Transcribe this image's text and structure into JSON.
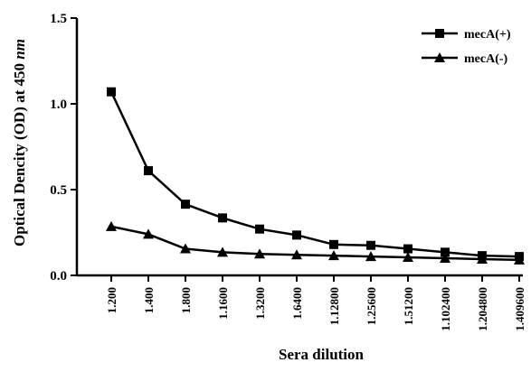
{
  "chart_data": {
    "type": "line",
    "title": "",
    "xlabel": "Sera dilution",
    "ylabel_text": "Optical Dencity (OD) at 450 ",
    "ylabel_unit": "nm",
    "categories": [
      "1.200",
      "1.400",
      "1.800",
      "1.1600",
      "1.3200",
      "1.6400",
      "1.12800",
      "1.25600",
      "1.51200",
      "1.102400",
      "1.204800",
      "1.409600"
    ],
    "ylim": [
      0,
      1.5
    ],
    "yticks": [
      0.0,
      0.5,
      1.0,
      1.5
    ],
    "ytick_labels": [
      "0.0",
      "0.5",
      "1.0",
      "1.5"
    ],
    "series": [
      {
        "name": "mecA(+)",
        "marker": "square",
        "values": [
          1.07,
          0.61,
          0.415,
          0.335,
          0.27,
          0.235,
          0.18,
          0.175,
          0.155,
          0.135,
          0.115,
          0.11
        ]
      },
      {
        "name": "mecA(-)",
        "marker": "triangle",
        "values": [
          0.285,
          0.24,
          0.155,
          0.135,
          0.125,
          0.12,
          0.115,
          0.11,
          0.105,
          0.1,
          0.095,
          0.09
        ]
      }
    ],
    "legend_position": "top-right",
    "grid": false,
    "line_color": "#000000"
  }
}
